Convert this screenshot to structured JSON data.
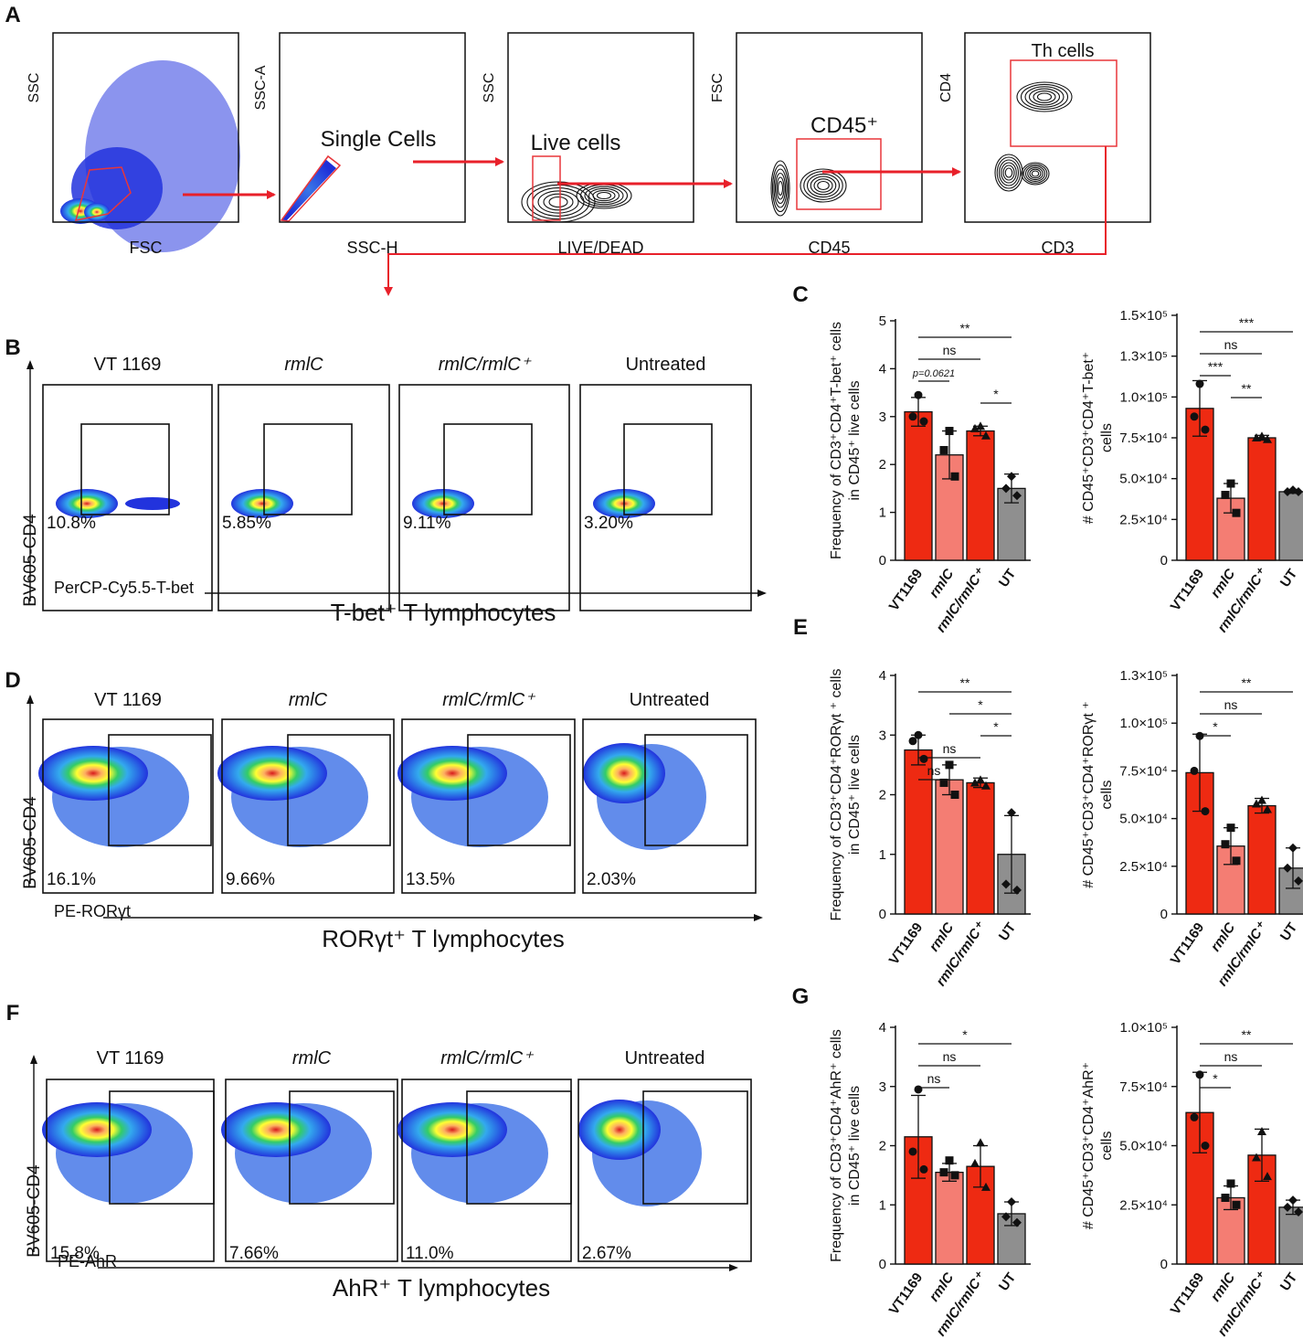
{
  "panel_letters": [
    "A",
    "B",
    "C",
    "D",
    "E",
    "F",
    "G"
  ],
  "gating": {
    "plots": [
      {
        "xlabel": "FSC",
        "ylabel": "SSC",
        "gate_label": ""
      },
      {
        "xlabel": "SSC-H",
        "ylabel": "SSC-A",
        "gate_label": "Single Cells"
      },
      {
        "xlabel": "LIVE/DEAD",
        "ylabel": "SSC",
        "gate_label": "Live cells"
      },
      {
        "xlabel": "CD45",
        "ylabel": "FSC",
        "gate_label": "CD45⁺"
      },
      {
        "xlabel": "CD3",
        "ylabel": "CD4",
        "gate_label": "Th cells"
      }
    ]
  },
  "flow_panels": [
    {
      "ylabel": "BV605-CD4",
      "xlabel": "PerCP-Cy5.5-T-bet",
      "title": "T-bet⁺ T lymphocytes",
      "samples": [
        "VT 1169",
        "rmlC",
        "rmlC/rmlC⁺",
        "Untreated"
      ],
      "percents": [
        "10.8%",
        "5.85%",
        "9.11%",
        "3.20%"
      ]
    },
    {
      "ylabel": "BV605-CD4",
      "xlabel": "PE-RORγt",
      "title": "RORγt⁺ T lymphocytes",
      "samples": [
        "VT 1169",
        "rmlC",
        "rmlC/rmlC⁺",
        "Untreated"
      ],
      "percents": [
        "16.1%",
        "9.66%",
        "13.5%",
        "2.03%"
      ]
    },
    {
      "ylabel": "BV605-CD4",
      "xlabel": "PE-AhR",
      "title": "AhR⁺ T lymphocytes",
      "samples": [
        "VT 1169",
        "rmlC",
        "rmlC/rmlC⁺",
        "Untreated"
      ],
      "percents": [
        "15.8%",
        "7.66%",
        "11.0%",
        "2.67%"
      ]
    }
  ],
  "colors": {
    "vt": "#ee2a12",
    "rmlc": "#f47d73",
    "rmlcp": "#ee2a12",
    "ut": "#8f8f8f",
    "gate": "#e8363a",
    "arrow": "#e8202a"
  },
  "chart_data": [
    {
      "id": "C-freq",
      "type": "bar",
      "categories": [
        "VT1169",
        "rmlC",
        "rmlC/rmlC⁺",
        "UT"
      ],
      "values": [
        3.1,
        2.2,
        2.7,
        1.5
      ],
      "errors": [
        0.3,
        0.5,
        0.1,
        0.3
      ],
      "points": [
        [
          3.45,
          3.0,
          2.9
        ],
        [
          2.7,
          2.3,
          1.75
        ],
        [
          2.8,
          2.75,
          2.6
        ],
        [
          1.75,
          1.5,
          1.35
        ]
      ],
      "ylabel": "Frequency of CD3⁺CD4⁺T-bet⁺ cells in CD45⁺ live cells",
      "ylim": [
        0,
        5
      ],
      "yticks": [
        "0",
        "1",
        "2",
        "3",
        "4",
        "5"
      ],
      "comparisons": [
        {
          "from": 0,
          "to": 3,
          "label": "**"
        },
        {
          "from": 0,
          "to": 2,
          "label": "ns"
        },
        {
          "from": 0,
          "to": 1,
          "label": "p=0.0621"
        },
        {
          "from": 2,
          "to": 3,
          "label": "*"
        }
      ]
    },
    {
      "id": "C-count",
      "type": "bar",
      "categories": [
        "VT1169",
        "rmlC",
        "rmlC/rmlC⁺",
        "UT"
      ],
      "values": [
        93000,
        38000,
        75000,
        42000
      ],
      "errors": [
        17000,
        9000,
        1500,
        1000
      ],
      "points": [
        [
          108000,
          88000,
          80000
        ],
        [
          47000,
          40000,
          29000
        ],
        [
          76000,
          75000,
          74000
        ],
        [
          43000,
          42000,
          42000
        ]
      ],
      "ylabel": "# CD45⁺CD3⁺CD4⁺T-bet⁺ cells",
      "ylim": [
        0,
        150000
      ],
      "yticks": [
        "0",
        "2.5×10⁴",
        "5.0×10⁴",
        "7.5×10⁴",
        "1.0×10⁵",
        "1.3×10⁵",
        "1.5×10⁵"
      ],
      "comparisons": [
        {
          "from": 0,
          "to": 3,
          "label": "***"
        },
        {
          "from": 0,
          "to": 2,
          "label": "ns"
        },
        {
          "from": 0,
          "to": 1,
          "label": "***"
        },
        {
          "from": 1,
          "to": 2,
          "label": "**"
        }
      ]
    },
    {
      "id": "E-freq",
      "type": "bar",
      "categories": [
        "VT1169",
        "rmlC",
        "rmlC/rmlC⁺",
        "UT"
      ],
      "values": [
        2.75,
        2.25,
        2.2,
        1.0
      ],
      "errors": [
        0.25,
        0.25,
        0.08,
        0.65
      ],
      "points": [
        [
          3.0,
          2.9,
          2.6
        ],
        [
          2.5,
          2.2,
          2.0
        ],
        [
          2.25,
          2.2,
          2.15
        ],
        [
          1.7,
          0.5,
          0.4
        ]
      ],
      "ylabel": "Frequency of CD3⁺CD4⁺RORγt ⁺ cells in CD45⁺ live cells",
      "ylim": [
        0,
        4
      ],
      "yticks": [
        "0",
        "1",
        "2",
        "3",
        "4"
      ],
      "comparisons": [
        {
          "from": 0,
          "to": 3,
          "label": "**"
        },
        {
          "from": 1,
          "to": 3,
          "label": "*"
        },
        {
          "from": 2,
          "to": 3,
          "label": "*"
        },
        {
          "from": 0,
          "to": 2,
          "label": "ns"
        },
        {
          "from": 0,
          "to": 1,
          "label": "ns"
        }
      ]
    },
    {
      "id": "E-count",
      "type": "bar",
      "categories": [
        "VT1169",
        "rmlC",
        "rmlC/rmlC⁺",
        "UT"
      ],
      "values": [
        77000,
        37000,
        59000,
        25000
      ],
      "errors": [
        21000,
        10000,
        4000,
        11000
      ],
      "points": [
        [
          97000,
          78000,
          56000
        ],
        [
          47000,
          38000,
          29000
        ],
        [
          62000,
          60000,
          57000
        ],
        [
          36000,
          25000,
          18000
        ]
      ],
      "ylabel": "# CD45⁺CD3⁺CD4⁺RORγt ⁺ cells",
      "ylim": [
        0,
        130000
      ],
      "yticks": [
        "0",
        "2.5×10⁴",
        "5.0×10⁴",
        "7.5×10⁴",
        "1.0×10⁵",
        "1.3×10⁵"
      ],
      "comparisons": [
        {
          "from": 0,
          "to": 3,
          "label": "**"
        },
        {
          "from": 0,
          "to": 2,
          "label": "ns"
        },
        {
          "from": 0,
          "to": 1,
          "label": "*"
        }
      ]
    },
    {
      "id": "G-freq",
      "type": "bar",
      "categories": [
        "VT1169",
        "rmlC",
        "rmlC/rmlC⁺",
        "UT"
      ],
      "values": [
        2.15,
        1.55,
        1.65,
        0.85
      ],
      "errors": [
        0.7,
        0.15,
        0.35,
        0.2
      ],
      "points": [
        [
          2.95,
          1.9,
          1.6
        ],
        [
          1.75,
          1.55,
          1.5
        ],
        [
          2.05,
          1.7,
          1.3
        ],
        [
          1.05,
          0.8,
          0.7
        ]
      ],
      "ylabel": "Frequency of CD3⁺CD4⁺AhR⁺ cells in CD45⁺ live cells",
      "ylim": [
        0,
        4
      ],
      "yticks": [
        "0",
        "1",
        "2",
        "3",
        "4"
      ],
      "comparisons": [
        {
          "from": 0,
          "to": 3,
          "label": "*"
        },
        {
          "from": 0,
          "to": 2,
          "label": "ns"
        },
        {
          "from": 0,
          "to": 1,
          "label": "ns"
        }
      ]
    },
    {
      "id": "G-count",
      "type": "bar",
      "categories": [
        "VT1169",
        "rmlC",
        "rmlC/rmlC⁺",
        "UT"
      ],
      "values": [
        64000,
        28000,
        46000,
        24000
      ],
      "errors": [
        17000,
        5000,
        11000,
        3000
      ],
      "points": [
        [
          80000,
          62000,
          50000
        ],
        [
          34000,
          28000,
          25000
        ],
        [
          56000,
          45000,
          37000
        ],
        [
          27000,
          24000,
          22000
        ]
      ],
      "ylabel": "# CD45⁺CD3⁺CD4⁺AhR⁺ cells",
      "ylim": [
        0,
        100000
      ],
      "yticks": [
        "0",
        "2.5×10⁴",
        "5.0×10⁴",
        "7.5×10⁴",
        "1.0×10⁵"
      ],
      "comparisons": [
        {
          "from": 0,
          "to": 3,
          "label": "**"
        },
        {
          "from": 0,
          "to": 2,
          "label": "ns"
        },
        {
          "from": 0,
          "to": 1,
          "label": "*"
        }
      ]
    }
  ]
}
